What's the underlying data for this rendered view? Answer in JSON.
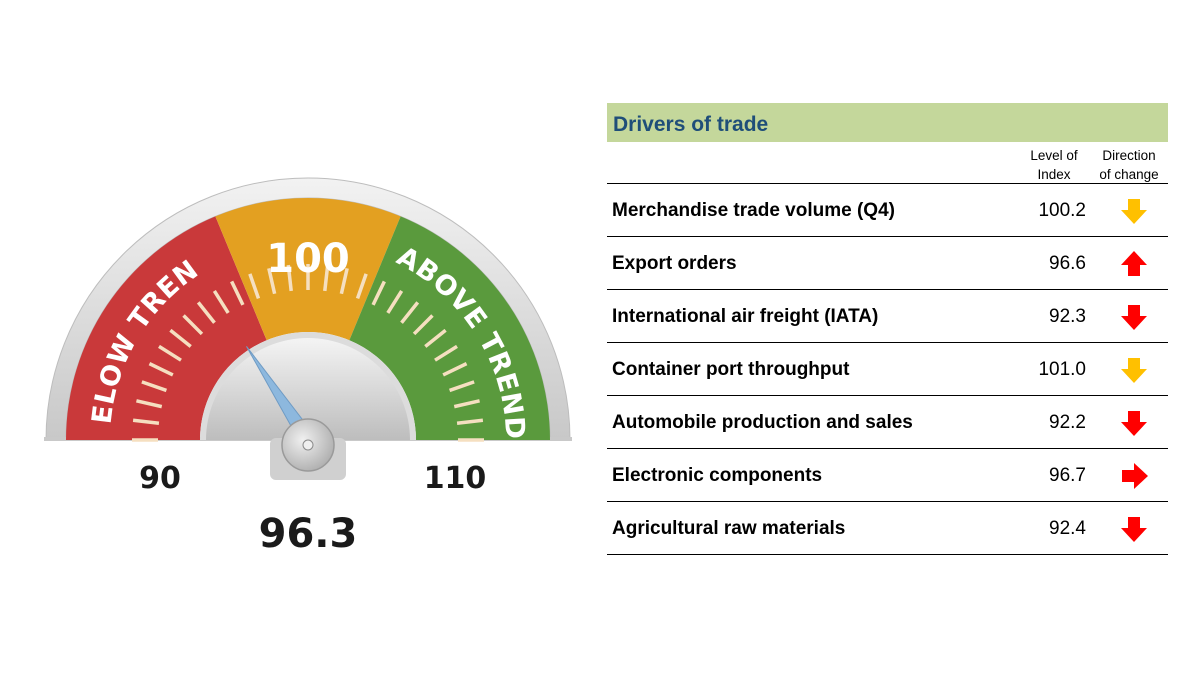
{
  "colors": {
    "below": "#c9393a",
    "mid": "#e3a021",
    "above": "#5a9a3d",
    "needle": "#8db8de",
    "header_band": "#c4d79b",
    "header_text": "#1f4e79",
    "arrow_yellow": "#ffc000",
    "arrow_red": "#ff0000"
  },
  "chart_data": {
    "type": "gauge",
    "min": 90,
    "max": 110,
    "value": 96.3,
    "value_label": "96.3",
    "min_label": "90",
    "mid_label": "100",
    "max_label": "110",
    "zones": [
      {
        "label": "BELOW TREND",
        "from": 90,
        "to": 97.5
      },
      {
        "label": "",
        "from": 97.5,
        "to": 102.5
      },
      {
        "label": "ABOVE TREND",
        "from": 102.5,
        "to": 110
      }
    ]
  },
  "table": {
    "title": "Drivers of trade",
    "col_level": "Level of Index",
    "col_level_lines": [
      "Level of",
      "Index"
    ],
    "col_direction": "Direction of change",
    "col_direction_lines": [
      "Direction",
      "of change"
    ],
    "rows": [
      {
        "name": "Merchandise trade volume (Q4)",
        "value": "100.2",
        "direction": "down",
        "direction_color": "yellow"
      },
      {
        "name": "Export orders",
        "value": "96.6",
        "direction": "up",
        "direction_color": "red"
      },
      {
        "name": "International air freight (IATA)",
        "value": "92.3",
        "direction": "down",
        "direction_color": "red"
      },
      {
        "name": "Container port throughput",
        "value": "101.0",
        "direction": "down",
        "direction_color": "yellow"
      },
      {
        "name": "Automobile production and sales",
        "value": "92.2",
        "direction": "down",
        "direction_color": "red"
      },
      {
        "name": "Electronic components",
        "value": "96.7",
        "direction": "right",
        "direction_color": "red"
      },
      {
        "name": "Agricultural raw materials",
        "value": "92.4",
        "direction": "down",
        "direction_color": "red"
      }
    ]
  }
}
